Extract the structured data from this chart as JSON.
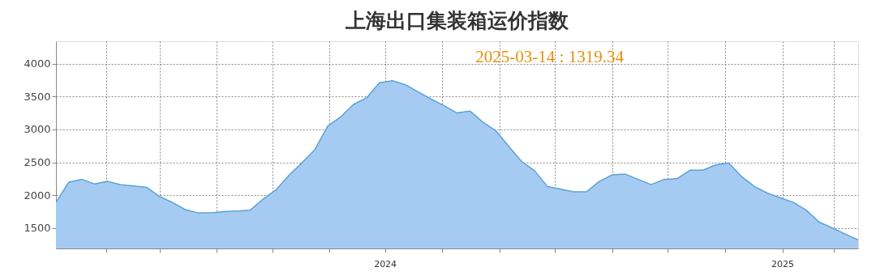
{
  "chart_data": {
    "type": "area",
    "title": "上海出口集装箱运价指数",
    "annotations": [
      "2025-03-14 : 1319.34"
    ],
    "x": [
      "2024-01-05",
      "2024-01-12",
      "2024-01-19",
      "2024-01-26",
      "2024-02-02",
      "2024-02-09",
      "2024-02-16",
      "2024-02-23",
      "2024-03-01",
      "2024-03-08",
      "2024-03-15",
      "2024-03-22",
      "2024-03-29",
      "2024-04-05",
      "2024-04-12",
      "2024-04-19",
      "2024-04-26",
      "2024-05-03",
      "2024-05-10",
      "2024-05-17",
      "2024-05-24",
      "2024-05-31",
      "2024-06-07",
      "2024-06-14",
      "2024-06-21",
      "2024-06-28",
      "2024-07-05",
      "2024-07-12",
      "2024-07-19",
      "2024-07-26",
      "2024-08-02",
      "2024-08-09",
      "2024-08-16",
      "2024-08-23",
      "2024-08-30",
      "2024-09-06",
      "2024-09-13",
      "2024-09-20",
      "2024-09-27",
      "2024-10-04",
      "2024-10-11",
      "2024-10-18",
      "2024-10-25",
      "2024-11-01",
      "2024-11-08",
      "2024-11-15",
      "2024-11-22",
      "2024-11-29",
      "2024-12-06",
      "2024-12-13",
      "2024-12-20",
      "2024-12-27",
      "2025-01-03",
      "2025-01-10",
      "2025-01-17",
      "2025-01-24",
      "2025-01-31",
      "2025-02-07",
      "2025-02-14",
      "2025-02-21",
      "2025-02-28",
      "2025-03-07",
      "2025-03-14"
    ],
    "series": [
      {
        "color": "#a6cbf3",
        "values": [
          1890,
          2200,
          2240,
          2170,
          2210,
          2160,
          2140,
          2120,
          1980,
          1890,
          1780,
          1730,
          1730,
          1750,
          1760,
          1770,
          1940,
          2080,
          2300,
          2490,
          2690,
          3050,
          3190,
          3380,
          3480,
          3710,
          3740,
          3680,
          3570,
          3460,
          3360,
          3250,
          3280,
          3110,
          2980,
          2740,
          2510,
          2370,
          2130,
          2090,
          2050,
          2050,
          2210,
          2310,
          2320,
          2240,
          2160,
          2240,
          2250,
          2380,
          2380,
          2460,
          2490,
          2280,
          2130,
          2030,
          1960,
          1890,
          1770,
          1590,
          1500,
          1410,
          1319.34
        ]
      }
    ],
    "xlim": [
      "2024-01-05",
      "2025-03-14"
    ],
    "xticks": [
      {
        "value": "2024-02-01",
        "label": null
      },
      {
        "value": "2024-03-01",
        "label": null
      },
      {
        "value": "2024-04-01",
        "label": null
      },
      {
        "value": "2024-05-01",
        "label": null
      },
      {
        "value": "2024-06-01",
        "label": null
      },
      {
        "value": "2024-07-01",
        "label": "2024"
      },
      {
        "value": "2024-08-01",
        "label": null
      },
      {
        "value": "2024-09-01",
        "label": null
      },
      {
        "value": "2024-10-01",
        "label": null
      },
      {
        "value": "2024-11-01",
        "label": null
      },
      {
        "value": "2024-12-01",
        "label": null
      },
      {
        "value": "2025-01-01",
        "label": null
      },
      {
        "value": "2025-02-01",
        "label": "2025"
      },
      {
        "value": "2025-03-01",
        "label": null
      }
    ],
    "ylim": [
      1190,
      4340
    ],
    "yticks": [
      1500,
      2000,
      2500,
      3000,
      3500,
      4000
    ],
    "grid": true
  }
}
